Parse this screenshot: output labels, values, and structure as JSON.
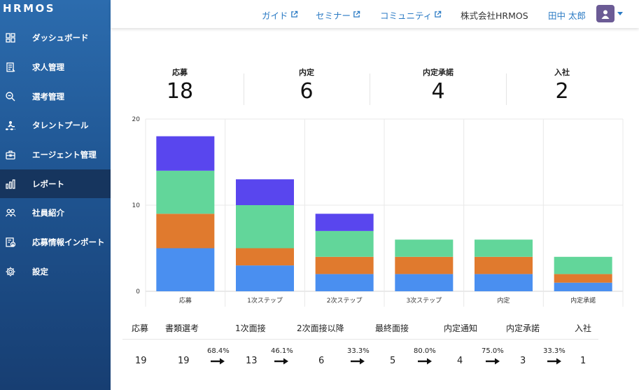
{
  "brand": {
    "logo_text": "HRMOS"
  },
  "sidebar": {
    "items": [
      {
        "label": "ダッシュボード",
        "icon": "dashboard-icon"
      },
      {
        "label": "求人管理",
        "icon": "job-posting-icon"
      },
      {
        "label": "選考管理",
        "icon": "selection-search-icon"
      },
      {
        "label": "タレントプール",
        "icon": "talent-pool-icon"
      },
      {
        "label": "エージェント管理",
        "icon": "agent-briefcase-icon"
      },
      {
        "label": "レポート",
        "icon": "report-bar-icon",
        "active": true
      },
      {
        "label": "社員紹介",
        "icon": "referral-people-icon"
      },
      {
        "label": "応募情報インポート",
        "icon": "import-icon"
      },
      {
        "label": "設定",
        "icon": "gear-icon"
      }
    ]
  },
  "header": {
    "links": [
      {
        "label": "ガイド",
        "icon": "external-link-icon"
      },
      {
        "label": "セミナー",
        "icon": "external-link-icon"
      },
      {
        "label": "コミュニティ",
        "icon": "external-link-icon"
      }
    ],
    "company": "株式会社HRMOS",
    "user_name": "田中 太郎",
    "avatar_icon": "user-avatar-icon",
    "menu_icon": "caret-down-icon",
    "link_color": "#2a7ac4"
  },
  "kpis": [
    {
      "label": "応募",
      "value": "18"
    },
    {
      "label": "内定",
      "value": "6"
    },
    {
      "label": "内定承諾",
      "value": "4"
    },
    {
      "label": "入社",
      "value": "2"
    }
  ],
  "chart_data": {
    "type": "bar",
    "stacked": true,
    "categories": [
      "応募",
      "1次ステップ",
      "2次ステップ",
      "3次ステップ",
      "内定",
      "内定承諾"
    ],
    "series": [
      {
        "color": "#4a8ff0",
        "values": [
          5,
          3,
          2,
          2,
          2,
          1
        ]
      },
      {
        "color": "#e07a2e",
        "values": [
          4,
          2,
          2,
          2,
          2,
          1
        ]
      },
      {
        "color": "#62d69a",
        "values": [
          5,
          5,
          3,
          2,
          2,
          2
        ]
      },
      {
        "color": "#5946ee",
        "values": [
          4,
          3,
          2,
          0,
          0,
          0
        ]
      }
    ],
    "ylim": [
      0,
      20
    ],
    "yticks": [
      0,
      10,
      20
    ],
    "grid": true,
    "legend": "none"
  },
  "funnel": {
    "stages": [
      {
        "label": "応募",
        "value": "19"
      },
      {
        "label": "書類選考",
        "value": "19"
      },
      {
        "label": "1次面接",
        "value": "13"
      },
      {
        "label": "2次面接以降",
        "value": "6"
      },
      {
        "label": "最終面接",
        "value": "5"
      },
      {
        "label": "内定通知",
        "value": "4"
      },
      {
        "label": "内定承諾",
        "value": "3"
      },
      {
        "label": "入社",
        "value": "1"
      }
    ],
    "rates": [
      "68.4%",
      "46.1%",
      "33.3%",
      "80.0%",
      "75.0%",
      "33.3%"
    ],
    "arrow_icon": "arrow-right-icon"
  }
}
